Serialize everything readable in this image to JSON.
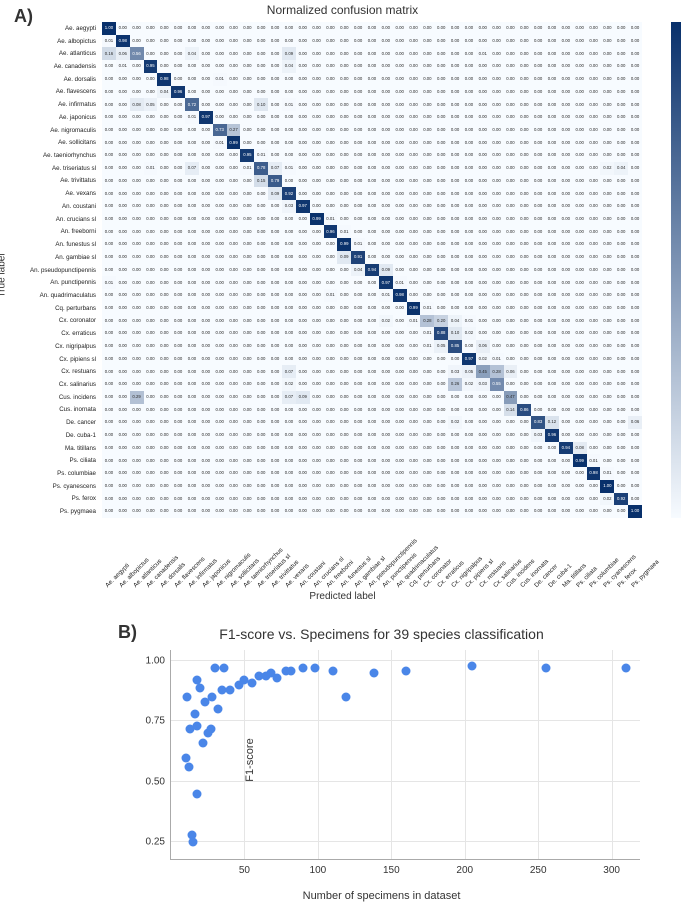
{
  "panelA": {
    "label": "A)",
    "title": "Normalized confusion matrix",
    "xlabel": "Predicted label",
    "ylabel": "True label",
    "colormap_low": "#f7fbff",
    "colormap_high": "#08306b",
    "text_dark": "#2b2b2b",
    "text_light": "#ffffff",
    "light_text_threshold": 0.55,
    "classes": [
      "Ae. aegypti",
      "Ae. albopictus",
      "Ae. atlanticus",
      "Ae. canadensis",
      "Ae. dorsalis",
      "Ae. flavescens",
      "Ae. infirmatus",
      "Ae. japonicus",
      "Ae. nigromaculis",
      "Ae. sollicitans",
      "Ae. taeniorhynchus",
      "Ae. triseriatus sl",
      "Ae. trivittatus",
      "Ae. vexans",
      "An. coustani",
      "An. crucians sl",
      "An. freeborni",
      "An. funestus sl",
      "An. gambiae sl",
      "An. pseudopunctipennis",
      "An. punctipennis",
      "An. quadrimaculatus",
      "Cq. perturbans",
      "Cx. coronator",
      "Cx. erraticus",
      "Cx. nigripalpus",
      "Cx. pipiens sl",
      "Cx. restuans",
      "Cx. salinarius",
      "Cus. incidens",
      "Cus. inornata",
      "De. cancer",
      "De. cuba-1",
      "Ma. titillans",
      "Ps. ciliata",
      "Ps. columbiae",
      "Ps. cyanescens",
      "Ps. ferox",
      "Ps. pygmaea"
    ],
    "diagonal": [
      1.0,
      0.98,
      0.56,
      0.95,
      0.98,
      0.96,
      0.72,
      0.97,
      0.73,
      0.99,
      0.95,
      0.78,
      0.79,
      0.92,
      0.97,
      0.99,
      0.96,
      0.99,
      0.91,
      0.94,
      0.97,
      0.98,
      0.99,
      0.28,
      0.88,
      0.85,
      0.97,
      0.45,
      0.55,
      0.47,
      0.86,
      0.83,
      0.96,
      0.94,
      0.99,
      0.98,
      1.0,
      0.92,
      1.0
    ],
    "off_diag": [
      {
        "r": 1,
        "c": 0,
        "v": 0.01
      },
      {
        "r": 2,
        "c": 0,
        "v": 0.16
      },
      {
        "r": 2,
        "c": 1,
        "v": 0.06
      },
      {
        "r": 2,
        "c": 6,
        "v": 0.04
      },
      {
        "r": 2,
        "c": 13,
        "v": 0.09
      },
      {
        "r": 2,
        "c": 27,
        "v": 0.01
      },
      {
        "r": 3,
        "c": 1,
        "v": 0.01
      },
      {
        "r": 3,
        "c": 13,
        "v": 0.04
      },
      {
        "r": 4,
        "c": 8,
        "v": 0.01
      },
      {
        "r": 5,
        "c": 4,
        "v": 0.04
      },
      {
        "r": 6,
        "c": 2,
        "v": 0.08
      },
      {
        "r": 6,
        "c": 3,
        "v": 0.05
      },
      {
        "r": 6,
        "c": 11,
        "v": 0.1
      },
      {
        "r": 6,
        "c": 13,
        "v": 0.01
      },
      {
        "r": 7,
        "c": 6,
        "v": 0.01
      },
      {
        "r": 8,
        "c": 9,
        "v": 0.27
      },
      {
        "r": 9,
        "c": 8,
        "v": 0.01
      },
      {
        "r": 10,
        "c": 11,
        "v": 0.01
      },
      {
        "r": 11,
        "c": 3,
        "v": 0.01
      },
      {
        "r": 11,
        "c": 6,
        "v": 0.07
      },
      {
        "r": 11,
        "c": 10,
        "v": 0.01
      },
      {
        "r": 11,
        "c": 12,
        "v": 0.07
      },
      {
        "r": 11,
        "c": 13,
        "v": 0.01
      },
      {
        "r": 11,
        "c": 36,
        "v": 0.02
      },
      {
        "r": 11,
        "c": 37,
        "v": 0.04
      },
      {
        "r": 12,
        "c": 11,
        "v": 0.15
      },
      {
        "r": 13,
        "c": 12,
        "v": 0.09
      },
      {
        "r": 14,
        "c": 13,
        "v": 0.03
      },
      {
        "r": 15,
        "c": 16,
        "v": 0.01
      },
      {
        "r": 16,
        "c": 17,
        "v": 0.01
      },
      {
        "r": 17,
        "c": 18,
        "v": 0.01
      },
      {
        "r": 18,
        "c": 17,
        "v": 0.09
      },
      {
        "r": 19,
        "c": 18,
        "v": 0.04
      },
      {
        "r": 19,
        "c": 20,
        "v": 0.09
      },
      {
        "r": 20,
        "c": 0,
        "v": 0.01
      },
      {
        "r": 20,
        "c": 21,
        "v": 0.01
      },
      {
        "r": 21,
        "c": 16,
        "v": 0.01
      },
      {
        "r": 21,
        "c": 20,
        "v": 0.01
      },
      {
        "r": 22,
        "c": 23,
        "v": 0.01
      },
      {
        "r": 23,
        "c": 20,
        "v": 0.02
      },
      {
        "r": 23,
        "c": 22,
        "v": 0.01
      },
      {
        "r": 23,
        "c": 24,
        "v": 0.2
      },
      {
        "r": 23,
        "c": 25,
        "v": 0.04
      },
      {
        "r": 23,
        "c": 26,
        "v": 0.01
      },
      {
        "r": 24,
        "c": 23,
        "v": 0.01
      },
      {
        "r": 24,
        "c": 25,
        "v": 0.1
      },
      {
        "r": 24,
        "c": 26,
        "v": 0.02
      },
      {
        "r": 25,
        "c": 23,
        "v": 0.01
      },
      {
        "r": 25,
        "c": 24,
        "v": 0.05
      },
      {
        "r": 25,
        "c": 27,
        "v": 0.06
      },
      {
        "r": 26,
        "c": 27,
        "v": 0.02
      },
      {
        "r": 26,
        "c": 28,
        "v": 0.01
      },
      {
        "r": 27,
        "c": 13,
        "v": 0.07
      },
      {
        "r": 27,
        "c": 25,
        "v": 0.03
      },
      {
        "r": 27,
        "c": 26,
        "v": 0.05
      },
      {
        "r": 27,
        "c": 28,
        "v": 0.28
      },
      {
        "r": 27,
        "c": 29,
        "v": 0.06
      },
      {
        "r": 28,
        "c": 13,
        "v": 0.02
      },
      {
        "r": 28,
        "c": 25,
        "v": 0.26
      },
      {
        "r": 28,
        "c": 26,
        "v": 0.02
      },
      {
        "r": 28,
        "c": 27,
        "v": 0.03
      },
      {
        "r": 29,
        "c": 2,
        "v": 0.29
      },
      {
        "r": 29,
        "c": 13,
        "v": 0.07
      },
      {
        "r": 29,
        "c": 14,
        "v": 0.09
      },
      {
        "r": 30,
        "c": 29,
        "v": 0.14
      },
      {
        "r": 31,
        "c": 25,
        "v": 0.02
      },
      {
        "r": 31,
        "c": 32,
        "v": 0.12
      },
      {
        "r": 31,
        "c": 38,
        "v": 0.06
      },
      {
        "r": 32,
        "c": 31,
        "v": 0.03
      },
      {
        "r": 33,
        "c": 34,
        "v": 0.08
      },
      {
        "r": 34,
        "c": 35,
        "v": 0.01
      },
      {
        "r": 35,
        "c": 36,
        "v": 0.01
      },
      {
        "r": 37,
        "c": 36,
        "v": 0.02
      }
    ]
  },
  "panelB": {
    "label": "B)",
    "title": "F1-score vs. Specimens for 39 species classification",
    "xlabel": "Number of specimens in dataset",
    "ylabel": "F1-score",
    "xlim": [
      0,
      320
    ],
    "ylim": [
      0.18,
      1.05
    ],
    "xticks": [
      50,
      100,
      150,
      200,
      250,
      300
    ],
    "yticks": [
      0.25,
      0.5,
      0.75,
      1.0
    ],
    "grid_color": "#e5e5e5",
    "marker_color": "#4a86e8",
    "marker_size": 9,
    "points": [
      {
        "x": 15,
        "y": 0.25
      },
      {
        "x": 14,
        "y": 0.28
      },
      {
        "x": 18,
        "y": 0.45
      },
      {
        "x": 12,
        "y": 0.56
      },
      {
        "x": 10,
        "y": 0.6
      },
      {
        "x": 22,
        "y": 0.66
      },
      {
        "x": 25,
        "y": 0.7
      },
      {
        "x": 13,
        "y": 0.72
      },
      {
        "x": 18,
        "y": 0.73
      },
      {
        "x": 27,
        "y": 0.72
      },
      {
        "x": 16,
        "y": 0.78
      },
      {
        "x": 32,
        "y": 0.8
      },
      {
        "x": 23,
        "y": 0.83
      },
      {
        "x": 28,
        "y": 0.85
      },
      {
        "x": 11,
        "y": 0.85
      },
      {
        "x": 35,
        "y": 0.88
      },
      {
        "x": 40,
        "y": 0.88
      },
      {
        "x": 20,
        "y": 0.89
      },
      {
        "x": 46,
        "y": 0.9
      },
      {
        "x": 50,
        "y": 0.92
      },
      {
        "x": 55,
        "y": 0.91
      },
      {
        "x": 18,
        "y": 0.92
      },
      {
        "x": 60,
        "y": 0.94
      },
      {
        "x": 65,
        "y": 0.94
      },
      {
        "x": 68,
        "y": 0.95
      },
      {
        "x": 72,
        "y": 0.93
      },
      {
        "x": 78,
        "y": 0.96
      },
      {
        "x": 82,
        "y": 0.96
      },
      {
        "x": 90,
        "y": 0.97
      },
      {
        "x": 98,
        "y": 0.97
      },
      {
        "x": 36,
        "y": 0.97
      },
      {
        "x": 110,
        "y": 0.96
      },
      {
        "x": 119,
        "y": 0.85
      },
      {
        "x": 138,
        "y": 0.95
      },
      {
        "x": 160,
        "y": 0.96
      },
      {
        "x": 205,
        "y": 0.98
      },
      {
        "x": 255,
        "y": 0.97
      },
      {
        "x": 310,
        "y": 0.97
      },
      {
        "x": 30,
        "y": 0.97
      }
    ]
  }
}
